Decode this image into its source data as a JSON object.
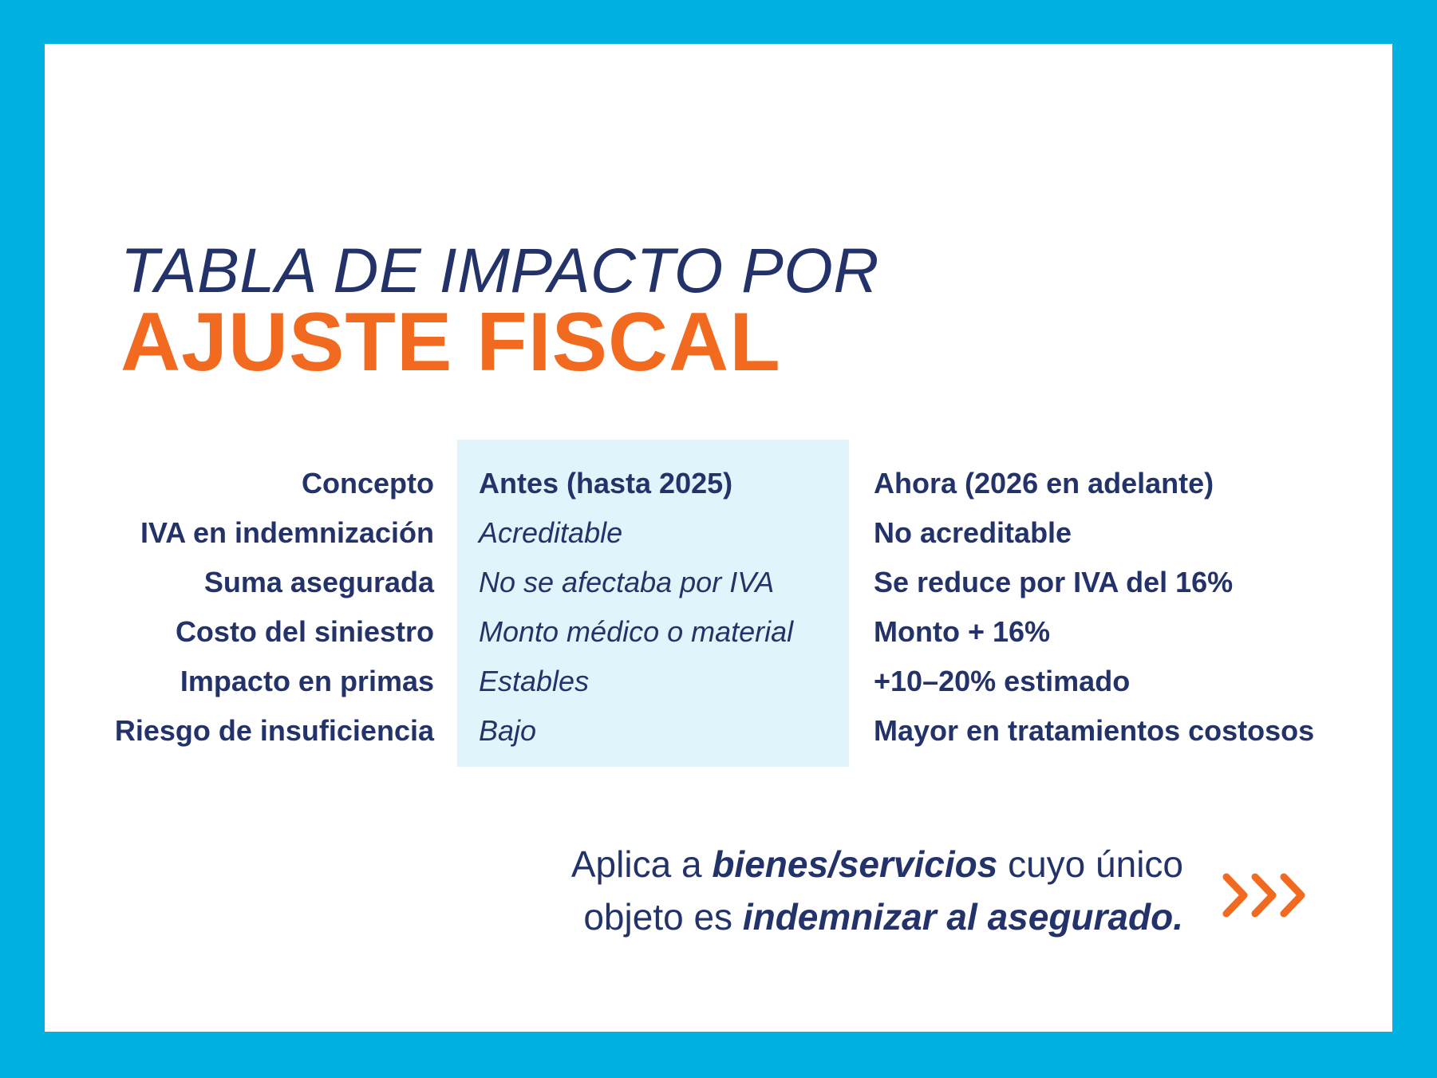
{
  "title": {
    "line1": "TABLA DE IMPACTO POR",
    "line2": "AJUSTE FISCAL"
  },
  "table": {
    "headers": {
      "concept": "Concepto",
      "before": "Antes (hasta 2025)",
      "now": "Ahora (2026 en adelante)"
    },
    "rows": [
      {
        "concept": "IVA en indemnización",
        "before": "Acreditable",
        "now": "No acreditable"
      },
      {
        "concept": "Suma asegurada",
        "before": "No se afectaba por IVA",
        "now": "Se reduce por IVA del 16%"
      },
      {
        "concept": "Costo del siniestro",
        "before": "Monto médico o material",
        "now": "Monto + 16%"
      },
      {
        "concept": "Impacto en primas",
        "before": "Estables",
        "now": "+10–20% estimado"
      },
      {
        "concept": "Riesgo de insuficiencia",
        "before": "Bajo",
        "now": "Mayor en tratamientos costosos"
      }
    ]
  },
  "footer": {
    "part1": "Aplica a ",
    "emph1": "bienes/servicios",
    "part2": " cuyo único",
    "part3": "objeto es ",
    "emph2": "indemnizar al asegurado."
  },
  "colors": {
    "border": "#00b1e1",
    "navy": "#23336a",
    "orange": "#f26a1f",
    "highlight": "#e0f4fb"
  },
  "icons": {
    "chevrons": "triple-chevron-right-icon"
  }
}
